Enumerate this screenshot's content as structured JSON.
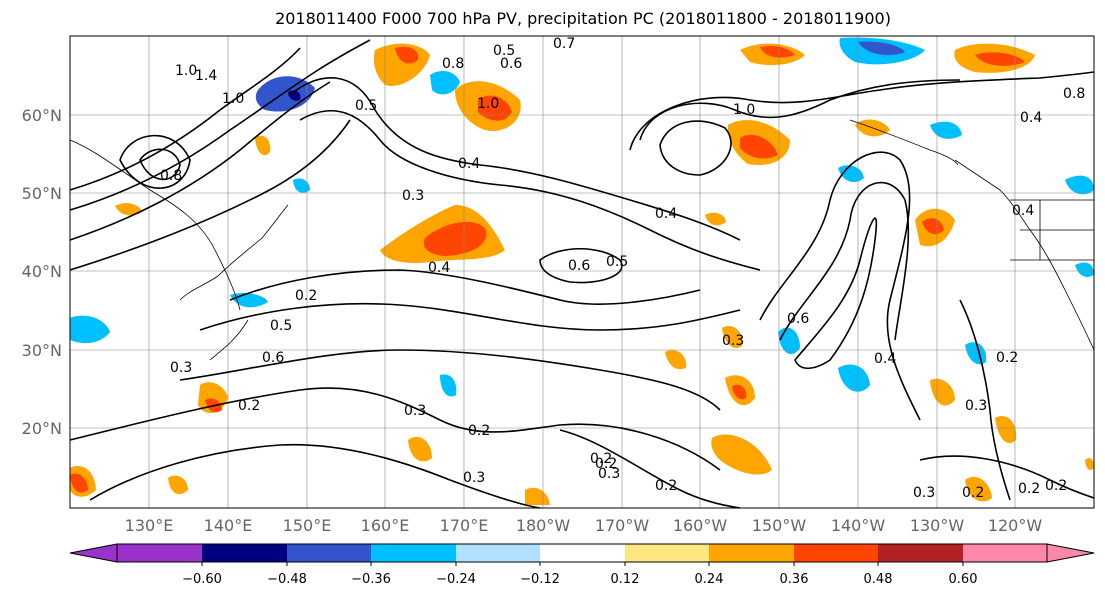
{
  "title": "2018011400 F000 700 hPa PV, precipitation PC (2018011800 - 2018011900)",
  "lat_labels": [
    "60°N",
    "50°N",
    "40°N",
    "30°N",
    "20°N"
  ],
  "lon_labels": [
    "130°E",
    "140°E",
    "150°E",
    "160°E",
    "170°E",
    "180°W",
    "170°W",
    "160°W",
    "150°W",
    "140°W",
    "130°W",
    "120°W"
  ],
  "colorbar": {
    "colors": [
      "#9933cc",
      "#000080",
      "#3355cc",
      "#00bfff",
      "#b0e0ff",
      "#ffffff",
      "#ffe680",
      "#ffa500",
      "#ff4500",
      "#b22222",
      "#ff88aa"
    ],
    "tick_labels": [
      "−0.60",
      "−0.48",
      "−0.36",
      "−0.24",
      "−0.12",
      "0.12",
      "0.24",
      "0.36",
      "0.48",
      "0.60"
    ]
  },
  "contour_labels": [
    "1.0",
    "1.4",
    "1.0",
    "0.8",
    "0.5",
    "0.3",
    "0.2",
    "0.5",
    "0.6",
    "0.4",
    "0.3",
    "0.2",
    "0.4",
    "0.5",
    "0.7",
    "0.8",
    "0.6",
    "1.0",
    "0.4",
    "0.3",
    "0.2",
    "0.3",
    "0.2",
    "0.3",
    "0.2",
    "0.6",
    "0.5",
    "0.4",
    "0.3",
    "0.2",
    "0.3",
    "0.2",
    "1.0",
    "0.4",
    "0.6",
    "0.2",
    "0.3",
    "0.2",
    "0.8",
    "0.4",
    "0.2"
  ]
}
